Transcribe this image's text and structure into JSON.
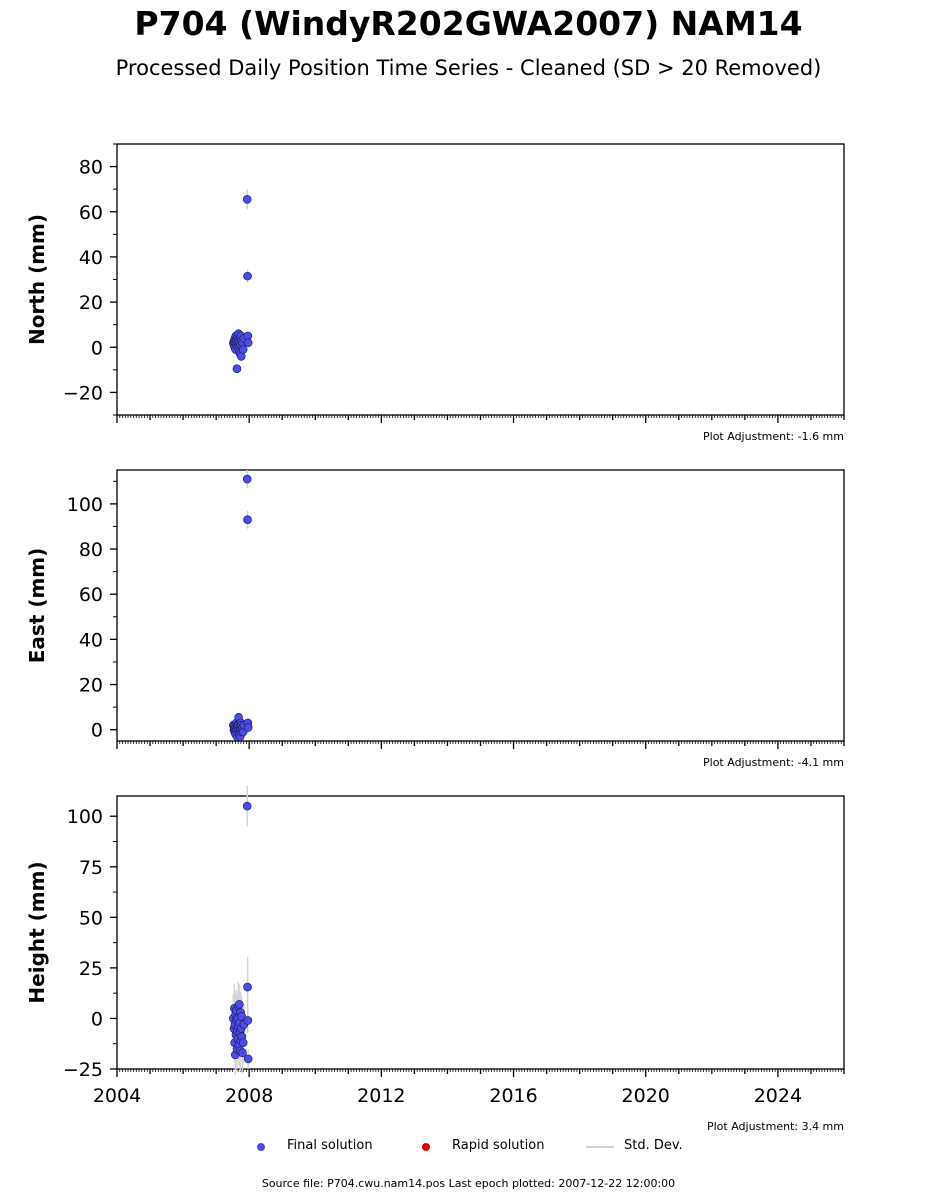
{
  "title": "P704 (WindyR202GWA2007) NAM14",
  "subtitle": "Processed Daily Position Time Series - Cleaned (SD > 20 Removed)",
  "legend": {
    "final": "Final solution",
    "rapid": "Rapid solution",
    "std": "Std. Dev."
  },
  "colors": {
    "final": "#4b4bef",
    "rapid": "#e00000",
    "std": "#d3d3d3"
  },
  "source_text": "Source file: P704.cwu.nam14.pos  Last epoch plotted: 2007-12-22 12:00:00",
  "chart_data": [
    {
      "type": "scatter",
      "ylabel": "North (mm)",
      "adjustment": "Plot Adjustment: -1.6 mm",
      "xlim": [
        2004,
        2026
      ],
      "ylim": [
        -30,
        90
      ],
      "yticks": [
        -20,
        0,
        20,
        40,
        60,
        80
      ],
      "ytick_labels": [
        "−20",
        "0",
        "20",
        "40",
        "60",
        "80"
      ],
      "series": [
        {
          "x": [
            2007.52,
            2007.54,
            2007.55,
            2007.56,
            2007.57,
            2007.58,
            2007.59,
            2007.6,
            2007.61,
            2007.62,
            2007.63,
            2007.64,
            2007.65,
            2007.66,
            2007.67,
            2007.68,
            2007.69,
            2007.7,
            2007.71,
            2007.72,
            2007.73,
            2007.74,
            2007.75,
            2007.76,
            2007.77,
            2007.78,
            2007.8,
            2007.82,
            2007.84,
            2007.94,
            2007.95,
            2007.96,
            2007.97
          ],
          "y": [
            2,
            1,
            3,
            0,
            4,
            2,
            -1,
            5,
            3,
            1,
            -9.5,
            2,
            4,
            0,
            3,
            6,
            1,
            -2,
            2,
            4,
            -3,
            1,
            5,
            -4,
            3,
            0,
            2,
            -1,
            4,
            65.5,
            31.5,
            5,
            2
          ],
          "err": [
            2,
            2,
            2,
            2,
            2,
            2,
            2,
            2,
            2,
            2,
            2,
            2,
            2,
            2,
            2,
            2,
            2,
            2,
            2,
            2,
            2,
            2,
            2,
            2,
            2,
            2,
            2,
            2,
            2,
            4.5,
            3,
            2,
            2
          ]
        }
      ]
    },
    {
      "type": "scatter",
      "ylabel": "East (mm)",
      "adjustment": "Plot Adjustment: -4.1 mm",
      "xlim": [
        2004,
        2026
      ],
      "ylim": [
        -5,
        115
      ],
      "yticks": [
        0,
        20,
        40,
        60,
        80,
        100
      ],
      "ytick_labels": [
        "0",
        "20",
        "40",
        "60",
        "80",
        "100"
      ],
      "series": [
        {
          "x": [
            2007.52,
            2007.54,
            2007.55,
            2007.56,
            2007.57,
            2007.58,
            2007.59,
            2007.6,
            2007.61,
            2007.62,
            2007.63,
            2007.64,
            2007.65,
            2007.66,
            2007.67,
            2007.68,
            2007.69,
            2007.7,
            2007.71,
            2007.72,
            2007.73,
            2007.74,
            2007.75,
            2007.76,
            2007.77,
            2007.78,
            2007.8,
            2007.82,
            2007.84,
            2007.94,
            2007.95,
            2007.96,
            2007.97
          ],
          "y": [
            2,
            0,
            1,
            -1,
            2,
            0,
            -2,
            1,
            3,
            0,
            -3,
            2,
            1,
            -1,
            2,
            5.5,
            0,
            -2,
            1,
            2,
            -3,
            0,
            3,
            -1,
            2,
            0,
            1,
            -1,
            2,
            111,
            93,
            3,
            1
          ],
          "err": [
            2,
            2,
            2,
            2,
            2,
            2,
            2,
            2,
            2,
            2,
            2,
            2,
            2,
            2,
            2,
            2,
            2,
            2,
            2,
            2,
            2,
            2,
            2,
            2,
            2,
            2,
            2,
            2,
            2,
            4,
            4,
            2,
            2
          ]
        }
      ]
    },
    {
      "type": "scatter",
      "ylabel": "Height (mm)",
      "adjustment": "Plot Adjustment: 3.4 mm",
      "xlim": [
        2004,
        2026
      ],
      "ylim": [
        -25,
        110
      ],
      "yticks": [
        -25,
        0,
        25,
        50,
        75,
        100
      ],
      "ytick_labels": [
        "−25",
        "0",
        "25",
        "50",
        "75",
        "100"
      ],
      "xticks": [
        2004,
        2008,
        2012,
        2016,
        2020,
        2024
      ],
      "xtick_labels": [
        "2004",
        "2008",
        "2012",
        "2016",
        "2020",
        "2024"
      ],
      "series": [
        {
          "x": [
            2007.52,
            2007.54,
            2007.55,
            2007.56,
            2007.57,
            2007.58,
            2007.59,
            2007.6,
            2007.61,
            2007.62,
            2007.63,
            2007.64,
            2007.65,
            2007.66,
            2007.67,
            2007.68,
            2007.69,
            2007.7,
            2007.71,
            2007.72,
            2007.73,
            2007.74,
            2007.75,
            2007.76,
            2007.77,
            2007.78,
            2007.8,
            2007.82,
            2007.84,
            2007.94,
            2007.95,
            2007.96,
            2007.97
          ],
          "y": [
            0,
            -5,
            5,
            -12,
            -3,
            -18,
            2,
            -8,
            4,
            -1,
            -15,
            -6,
            0,
            -10,
            6,
            -4,
            -13,
            7,
            -2,
            -7,
            -16,
            3,
            -11,
            -5,
            1,
            -9,
            -17,
            -12,
            -3,
            105,
            15.5,
            -1,
            -20
          ],
          "err": [
            12,
            10,
            12,
            10,
            12,
            10,
            10,
            12,
            10,
            10,
            10,
            10,
            12,
            10,
            12,
            10,
            10,
            10,
            10,
            10,
            10,
            10,
            10,
            10,
            10,
            10,
            10,
            10,
            10,
            10,
            15,
            6,
            5
          ]
        }
      ]
    }
  ]
}
